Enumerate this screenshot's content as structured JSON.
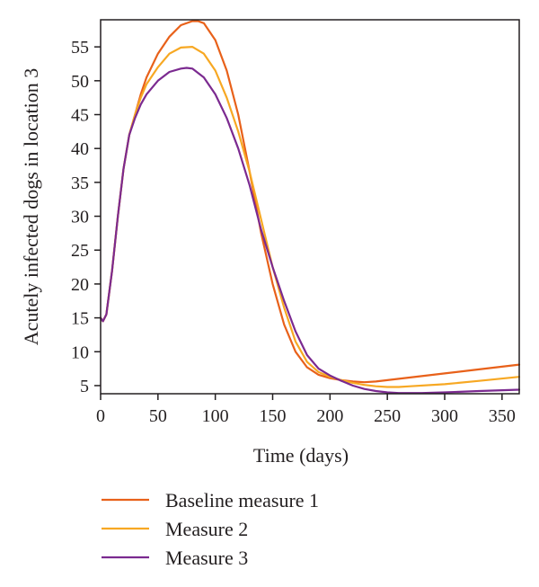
{
  "chart_data": {
    "type": "line",
    "title": "",
    "xlabel": "Time (days)",
    "ylabel": "Acutely infected dogs in location 3",
    "xlim": [
      0,
      365
    ],
    "ylim": [
      3.8,
      59
    ],
    "xticks": [
      0,
      50,
      100,
      150,
      200,
      250,
      300,
      350
    ],
    "yticks": [
      5,
      10,
      15,
      20,
      25,
      30,
      35,
      40,
      45,
      50,
      55
    ],
    "grid": false,
    "legend_position": "bottom",
    "series": [
      {
        "name": "Baseline measure 1",
        "color": "#e8611a",
        "x": [
          0,
          2,
          5,
          10,
          15,
          20,
          25,
          30,
          35,
          40,
          50,
          60,
          70,
          80,
          85,
          90,
          100,
          110,
          120,
          130,
          140,
          150,
          160,
          170,
          180,
          190,
          200,
          210,
          220,
          230,
          240,
          250,
          260,
          270,
          300,
          330,
          365
        ],
        "y": [
          15,
          14.5,
          15.5,
          22,
          30,
          37,
          42,
          45,
          48,
          50.5,
          54,
          56.5,
          58.2,
          58.8,
          58.8,
          58.5,
          56,
          51.5,
          45,
          36.5,
          27.5,
          20,
          14,
          10,
          7.7,
          6.6,
          6.1,
          5.8,
          5.6,
          5.5,
          5.6,
          5.8,
          6.0,
          6.2,
          6.8,
          7.4,
          8.1
        ]
      },
      {
        "name": "Measure 2",
        "color": "#f7a823",
        "x": [
          0,
          2,
          5,
          10,
          15,
          20,
          25,
          30,
          35,
          40,
          50,
          60,
          70,
          80,
          90,
          100,
          110,
          120,
          130,
          140,
          150,
          160,
          170,
          180,
          190,
          200,
          210,
          220,
          230,
          240,
          250,
          260,
          270,
          300,
          330,
          365
        ],
        "y": [
          15,
          14.5,
          15.5,
          22,
          30,
          37,
          42,
          45,
          47.5,
          49.5,
          52,
          54,
          54.9,
          55,
          54,
          51.5,
          47.5,
          42.5,
          36.5,
          29.5,
          22.5,
          16.5,
          11.5,
          8.5,
          7,
          6.3,
          5.8,
          5.4,
          5.1,
          4.9,
          4.8,
          4.8,
          4.9,
          5.2,
          5.7,
          6.3
        ]
      },
      {
        "name": "Measure 3",
        "color": "#7b2a90",
        "x": [
          0,
          2,
          5,
          10,
          15,
          20,
          25,
          30,
          35,
          40,
          50,
          60,
          70,
          75,
          80,
          90,
          100,
          110,
          120,
          130,
          140,
          150,
          160,
          170,
          180,
          190,
          200,
          210,
          220,
          230,
          240,
          250,
          260,
          270,
          280,
          300,
          330,
          365
        ],
        "y": [
          15,
          14.5,
          15.5,
          22,
          30,
          37,
          42,
          44.5,
          46.5,
          48,
          50,
          51.3,
          51.8,
          51.9,
          51.8,
          50.5,
          48,
          44.5,
          40,
          34.5,
          28,
          22.5,
          17.5,
          13,
          9.5,
          7.5,
          6.5,
          5.7,
          5.0,
          4.5,
          4.2,
          4.0,
          3.9,
          3.9,
          3.9,
          4.0,
          4.2,
          4.4
        ]
      }
    ]
  }
}
